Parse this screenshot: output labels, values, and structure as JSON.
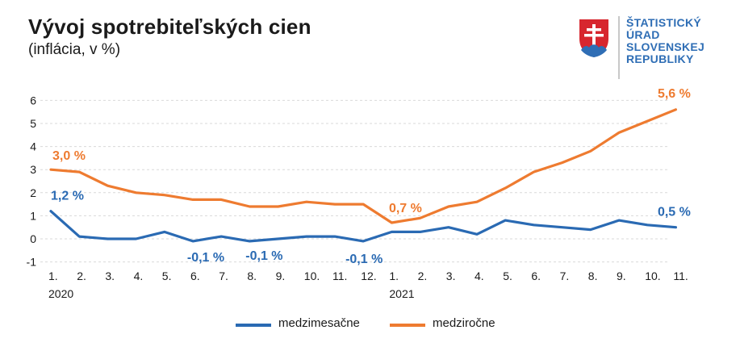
{
  "header": {
    "title": "Vývoj spotrebiteľských cien",
    "subtitle": "(inflácia, v %)"
  },
  "logo": {
    "lines": [
      "ŠTATISTICKÝ",
      "ÚRAD",
      "SLOVENSKEJ",
      "REPUBLIKY"
    ]
  },
  "colors": {
    "medzimesacne": "#2a6ab3",
    "medzirocne": "#ee7b30",
    "grid": "#d9d9d9",
    "text": "#1a1a1a"
  },
  "chart_data": {
    "type": "line",
    "categories": [
      "1.",
      "2.",
      "3.",
      "4.",
      "5.",
      "6.",
      "7.",
      "8.",
      "9.",
      "10.",
      "11.",
      "12.",
      "1.",
      "2.",
      "3.",
      "4.",
      "5.",
      "6.",
      "7.",
      "8.",
      "9.",
      "10.",
      "11."
    ],
    "year_labels": [
      {
        "index": 0,
        "label": "2020"
      },
      {
        "index": 12,
        "label": "2021"
      }
    ],
    "ylim": [
      -1,
      6
    ],
    "yticks": [
      -1,
      0,
      1,
      2,
      3,
      4,
      5,
      6
    ],
    "grid": true,
    "legend_position": "bottom",
    "series": [
      {
        "name": "medzimesačne",
        "color": "#2a6ab3",
        "values": [
          1.2,
          0.1,
          0.0,
          0.0,
          0.3,
          -0.1,
          0.1,
          -0.1,
          0.0,
          0.1,
          0.1,
          -0.1,
          0.3,
          0.3,
          0.5,
          0.2,
          0.8,
          0.6,
          0.5,
          0.4,
          0.8,
          0.6,
          0.5
        ]
      },
      {
        "name": "medziročne",
        "color": "#ee7b30",
        "values": [
          3.0,
          2.9,
          2.3,
          2.0,
          1.9,
          1.7,
          1.7,
          1.4,
          1.4,
          1.6,
          1.5,
          1.5,
          0.7,
          0.9,
          1.4,
          1.6,
          2.2,
          2.9,
          3.3,
          3.8,
          4.6,
          5.1,
          5.6
        ]
      }
    ],
    "annotations": [
      {
        "series": 1,
        "index": 0,
        "text": "3,0 %"
      },
      {
        "series": 0,
        "index": 0,
        "text": "1,2 %"
      },
      {
        "series": 0,
        "index": 5,
        "text": "-0,1 %"
      },
      {
        "series": 0,
        "index": 7,
        "text": "-0,1 %"
      },
      {
        "series": 0,
        "index": 11,
        "text": "-0,1 %"
      },
      {
        "series": 1,
        "index": 12,
        "text": "0,7 %"
      },
      {
        "series": 1,
        "index": 22,
        "text": "5,6 %"
      },
      {
        "series": 0,
        "index": 22,
        "text": "0,5 %"
      }
    ]
  }
}
